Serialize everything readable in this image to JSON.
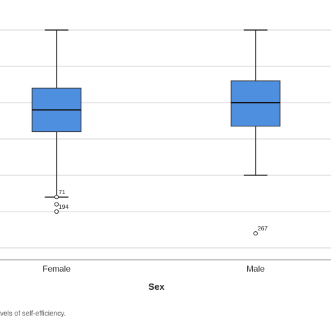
{
  "chart_data": {
    "type": "boxplot",
    "xlabel": "Sex",
    "ylabel": "",
    "categories": [
      "Female",
      "Male"
    ],
    "ylim": [
      0,
      6.4
    ],
    "grid": true,
    "box_color": "#4f8fe0",
    "boxes": [
      {
        "category": "Female",
        "whisker_low": 1.4,
        "q1": 3.2,
        "median": 3.8,
        "q3": 4.4,
        "whisker_high": 6.0,
        "outliers": [
          {
            "value": 1.4,
            "label": "71"
          },
          {
            "value": 1.2,
            "label": ""
          },
          {
            "value": 1.0,
            "label": "194"
          }
        ]
      },
      {
        "category": "Male",
        "whisker_low": 2.0,
        "q1": 3.35,
        "median": 4.0,
        "q3": 4.6,
        "whisker_high": 6.0,
        "outliers": [
          {
            "value": 0.4,
            "label": "267"
          }
        ]
      }
    ]
  },
  "caption": "vels of self-efficiency."
}
